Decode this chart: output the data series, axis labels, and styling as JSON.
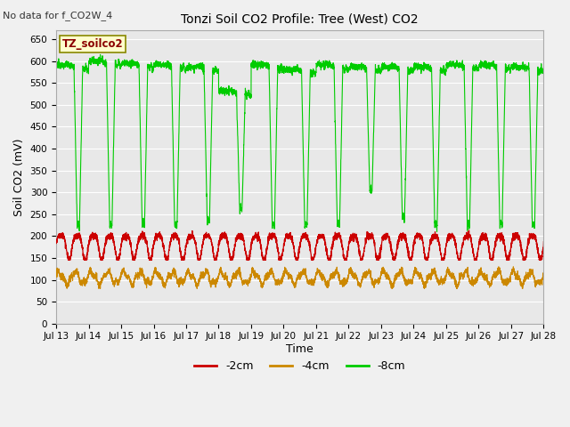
{
  "title": "Tonzi Soil CO2 Profile: Tree (West) CO2",
  "no_data_text": "No data for f_CO2W_4",
  "ylabel": "Soil CO2 (mV)",
  "xlabel": "Time",
  "ylim": [
    0,
    670
  ],
  "yticks": [
    0,
    50,
    100,
    150,
    200,
    250,
    300,
    350,
    400,
    450,
    500,
    550,
    600,
    650
  ],
  "xtick_labels": [
    "Jul 13",
    "Jul 14",
    "Jul 15",
    "Jul 16",
    "Jul 17",
    "Jul 18",
    "Jul 19",
    "Jul 20",
    "Jul 21",
    "Jul 22",
    "Jul 23",
    "Jul 24",
    "Jul 25",
    "Jul 26",
    "Jul 27",
    "Jul 28"
  ],
  "legend_label_box": "TZ_soilco2",
  "legend_entries": [
    {
      "label": "-2cm",
      "color": "#cc0000"
    },
    {
      "label": "-4cm",
      "color": "#cc8800"
    },
    {
      "label": "-8cm",
      "color": "#00cc00"
    }
  ],
  "bg_color": "#e8e8e8",
  "grid_color": "#ffffff",
  "line_2cm_color": "#cc0000",
  "line_4cm_color": "#cc8800",
  "line_8cm_color": "#00cc00",
  "fig_bg_color": "#f0f0f0"
}
